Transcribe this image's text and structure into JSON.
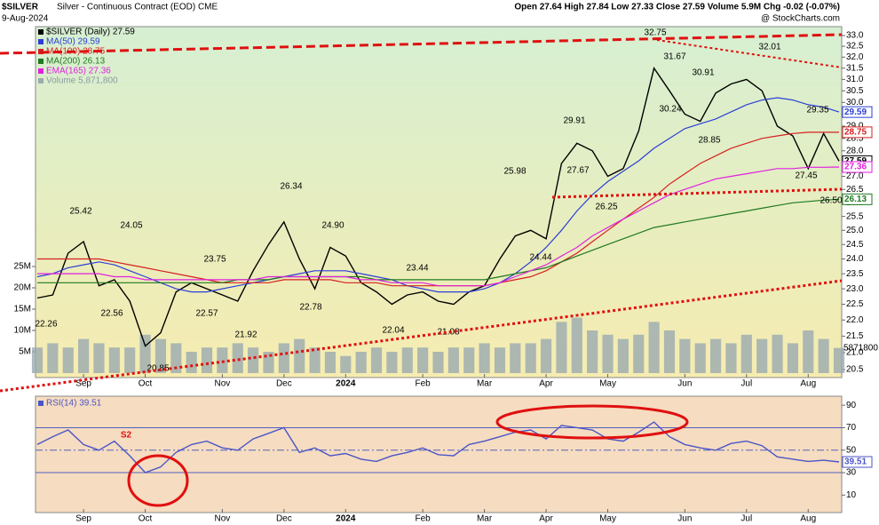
{
  "chart_data": [
    {
      "type": "line",
      "symbol": "$SILVER",
      "title": "Silver - Continuous Contract (EOD) CME",
      "date": "9-Aug-2024",
      "quote": "Open 27.64 High 27.84 Low 27.33 Close 27.59 Volume 5.9M Chg -0.02 (-0.07%)",
      "credit": "@ StockCharts.com",
      "log_scale": true,
      "categories": [
        null,
        null,
        null,
        "Sep",
        null,
        null,
        null,
        "Oct",
        null,
        null,
        null,
        null,
        "Nov",
        null,
        null,
        null,
        "Dec",
        null,
        null,
        null,
        "2024",
        null,
        null,
        null,
        null,
        "Feb",
        null,
        null,
        null,
        "Mar",
        null,
        null,
        null,
        "Apr",
        null,
        null,
        null,
        "May",
        null,
        null,
        null,
        null,
        "Jun",
        null,
        null,
        null,
        "Jul",
        null,
        null,
        null,
        "Aug",
        null,
        null
      ],
      "series": [
        {
          "name": "$SILVER (Daily) 27.59",
          "color": "#000000",
          "values": [
            22.7,
            22.8,
            24.2,
            24.6,
            23.1,
            23.3,
            22.6,
            21.2,
            21.6,
            22.9,
            23.2,
            23.0,
            22.8,
            22.6,
            23.6,
            24.5,
            25.3,
            24.0,
            23.0,
            24.4,
            24.1,
            23.2,
            22.9,
            22.5,
            22.8,
            22.9,
            22.6,
            22.5,
            22.9,
            23.1,
            24.0,
            24.8,
            25.0,
            24.7,
            27.5,
            28.3,
            28.0,
            27.0,
            27.3,
            28.8,
            31.5,
            30.5,
            29.5,
            29.2,
            30.4,
            30.8,
            31.0,
            30.5,
            29.0,
            28.6,
            27.3,
            28.7,
            27.59
          ]
        },
        {
          "name": "MA(50) 29.59",
          "color": "#2b3fd6",
          "values": [
            23.4,
            23.5,
            23.7,
            23.8,
            23.9,
            23.8,
            23.6,
            23.4,
            23.2,
            23.0,
            22.9,
            22.9,
            23.0,
            23.1,
            23.2,
            23.3,
            23.4,
            23.5,
            23.6,
            23.6,
            23.6,
            23.5,
            23.4,
            23.3,
            23.1,
            23.0,
            22.9,
            22.9,
            22.9,
            23.0,
            23.2,
            23.5,
            23.9,
            24.4,
            25.0,
            25.7,
            26.3,
            26.8,
            27.2,
            27.6,
            28.1,
            28.5,
            28.9,
            29.1,
            29.3,
            29.6,
            29.9,
            30.1,
            30.2,
            30.1,
            29.9,
            29.8,
            29.59
          ]
        },
        {
          "name": "MA(100) 28.75",
          "color": "#d62020",
          "values": [
            24.0,
            24.0,
            24.0,
            24.0,
            24.0,
            23.9,
            23.8,
            23.7,
            23.6,
            23.5,
            23.4,
            23.3,
            23.2,
            23.2,
            23.2,
            23.2,
            23.3,
            23.3,
            23.3,
            23.3,
            23.2,
            23.2,
            23.2,
            23.1,
            23.1,
            23.1,
            23.1,
            23.1,
            23.1,
            23.1,
            23.2,
            23.3,
            23.4,
            23.6,
            23.9,
            24.2,
            24.6,
            25.0,
            25.4,
            25.8,
            26.2,
            26.7,
            27.1,
            27.5,
            27.8,
            28.1,
            28.3,
            28.5,
            28.6,
            28.7,
            28.75,
            28.75,
            28.75
          ]
        },
        {
          "name": "MA(200) 26.13",
          "color": "#1f7a1f",
          "values": [
            23.2,
            23.2,
            23.2,
            23.2,
            23.2,
            23.2,
            23.2,
            23.2,
            23.2,
            23.2,
            23.2,
            23.2,
            23.2,
            23.3,
            23.3,
            23.3,
            23.4,
            23.4,
            23.4,
            23.4,
            23.4,
            23.4,
            23.3,
            23.3,
            23.3,
            23.3,
            23.3,
            23.3,
            23.3,
            23.3,
            23.4,
            23.5,
            23.6,
            23.7,
            23.9,
            24.1,
            24.3,
            24.5,
            24.7,
            24.9,
            25.1,
            25.2,
            25.3,
            25.4,
            25.5,
            25.6,
            25.7,
            25.8,
            25.9,
            26.0,
            26.05,
            26.1,
            26.13
          ]
        },
        {
          "name": "EMA(165) 27.36",
          "color": "#e020e0",
          "values": [
            23.5,
            23.5,
            23.5,
            23.5,
            23.5,
            23.4,
            23.4,
            23.3,
            23.3,
            23.3,
            23.3,
            23.3,
            23.3,
            23.3,
            23.3,
            23.4,
            23.4,
            23.4,
            23.4,
            23.4,
            23.4,
            23.3,
            23.3,
            23.2,
            23.2,
            23.2,
            23.1,
            23.1,
            23.1,
            23.1,
            23.2,
            23.4,
            23.6,
            23.8,
            24.1,
            24.4,
            24.8,
            25.1,
            25.4,
            25.7,
            26.0,
            26.3,
            26.5,
            26.7,
            26.9,
            27.0,
            27.1,
            27.2,
            27.3,
            27.3,
            27.35,
            27.35,
            27.36
          ]
        }
      ],
      "volume": {
        "name": "Volume 5,871,800",
        "color": "#9aaab0",
        "axis": "y2",
        "last_tag": 5871800,
        "values": [
          6,
          7,
          6,
          8,
          7,
          6,
          6,
          9,
          8,
          7,
          5,
          6,
          6,
          7,
          6,
          5,
          7,
          8,
          6,
          5,
          4,
          5,
          6,
          5,
          6,
          6,
          5,
          6,
          6,
          7,
          6,
          7,
          7,
          8,
          12,
          13,
          10,
          9,
          8,
          9,
          12,
          10,
          8,
          7,
          8,
          7,
          9,
          8,
          9,
          7,
          10,
          8,
          5.9
        ]
      },
      "ylim": [
        20.5,
        33.0
      ],
      "yticks": [
        20.5,
        {
          "value": 21,
          "label": "21.0"
        },
        21.5,
        {
          "value": 22,
          "label": "22.0"
        },
        22.5,
        {
          "value": 23,
          "label": "23.0"
        },
        23.5,
        {
          "value": 24,
          "label": "24.0"
        },
        24.5,
        {
          "value": 25,
          "label": "25.0"
        },
        25.5,
        {
          "value": 26,
          "label": "26.0"
        },
        26.5,
        {
          "value": 27,
          "label": "27.0"
        },
        27.5,
        {
          "value": 28,
          "label": "28.0"
        },
        28.5,
        {
          "value": 29,
          "label": "29.0"
        },
        29.5,
        {
          "value": 30,
          "label": "30.0"
        },
        30.5,
        {
          "value": 31,
          "label": "31.0"
        },
        31.5,
        {
          "value": 32,
          "label": "32.0"
        },
        32.5,
        {
          "value": 33,
          "label": "33.0"
        }
      ],
      "y2lim": [
        0,
        25
      ],
      "y2ticks": [
        {
          "value": 5,
          "label": "5M"
        },
        {
          "value": 10,
          "label": "10M"
        },
        {
          "value": 15,
          "label": "15M"
        },
        {
          "value": 20,
          "label": "20M"
        },
        {
          "value": 25,
          "label": "25M"
        }
      ],
      "annotations": [
        "25.42",
        "24.05",
        "22.56",
        "22.26",
        "20.85",
        "23.75",
        "22.57",
        "21.92",
        "26.34",
        "22.78",
        "24.90",
        "23.44",
        "22.04",
        "21.08",
        "25.98",
        "24.44",
        "29.91",
        "27.67",
        "26.25",
        "32.75",
        "31.67",
        "30.24",
        "30.91",
        "28.85",
        "32.01",
        "29.35",
        "27.45",
        "26.50"
      ],
      "right_tags": [
        {
          "value": 29.59,
          "color": "#2b3fd6"
        },
        {
          "value": 28.75,
          "color": "#d62020"
        },
        {
          "value": 27.59,
          "color": "#000000"
        },
        {
          "value": 27.36,
          "color": "#e020e0"
        },
        {
          "value": 26.13,
          "color": "#1f7a1f"
        }
      ]
    },
    {
      "type": "line",
      "log_scale": false,
      "series": [
        {
          "name": "RSI(14) 39.51",
          "color": "#4a55c8",
          "values": [
            55,
            62,
            68,
            55,
            50,
            58,
            45,
            30,
            35,
            48,
            55,
            58,
            52,
            50,
            60,
            65,
            70,
            48,
            52,
            45,
            47,
            42,
            40,
            45,
            48,
            52,
            46,
            45,
            55,
            58,
            62,
            66,
            68,
            60,
            72,
            70,
            68,
            60,
            58,
            66,
            75,
            62,
            55,
            52,
            50,
            56,
            58,
            54,
            44,
            42,
            40,
            41,
            39.51
          ]
        }
      ],
      "ylim": [
        0,
        100
      ],
      "yticks": [
        10,
        30,
        50,
        70,
        90
      ],
      "annotations": [
        "S2"
      ],
      "right_tags": [
        {
          "value": 39.51,
          "color": "#4a55c8"
        }
      ]
    }
  ]
}
